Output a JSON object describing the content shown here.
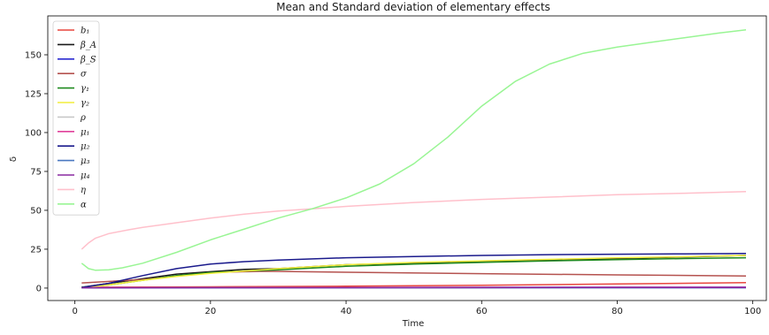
{
  "chart_data": {
    "type": "line",
    "title": "Mean and Standard deviation of elementary effects",
    "xlabel": "Time",
    "ylabel": "δ",
    "xlim": [
      -4,
      102
    ],
    "ylim": [
      -8,
      175
    ],
    "xticks": [
      0,
      20,
      40,
      60,
      80,
      100
    ],
    "yticks": [
      0,
      25,
      50,
      75,
      100,
      125,
      150
    ],
    "grid": false,
    "legend_position": "top-left",
    "series": [
      {
        "name": "b₁",
        "color": "#e8473f",
        "points": [
          [
            1,
            0.5
          ],
          [
            20,
            0.8
          ],
          [
            40,
            1.2
          ],
          [
            60,
            1.8
          ],
          [
            80,
            2.6
          ],
          [
            99,
            3.5
          ]
        ]
      },
      {
        "name": "β_A",
        "color": "#1a1a1a",
        "points": [
          [
            1,
            0.5
          ],
          [
            5,
            3
          ],
          [
            10,
            6
          ],
          [
            15,
            9
          ],
          [
            20,
            10.5
          ],
          [
            25,
            12
          ],
          [
            30,
            12.5
          ],
          [
            40,
            15
          ],
          [
            50,
            16
          ],
          [
            60,
            17
          ],
          [
            70,
            18
          ],
          [
            80,
            19
          ],
          [
            90,
            20
          ],
          [
            99,
            21
          ]
        ]
      },
      {
        "name": "β_S",
        "color": "#2a2ad0",
        "points": [
          [
            1,
            0.3
          ],
          [
            99,
            0.6
          ]
        ]
      },
      {
        "name": "σ",
        "color": "#b5524f",
        "points": [
          [
            1,
            3.3
          ],
          [
            10,
            5.5
          ],
          [
            20,
            10
          ],
          [
            28,
            10.8
          ],
          [
            40,
            10.2
          ],
          [
            60,
            9.3
          ],
          [
            80,
            8.5
          ],
          [
            99,
            7.8
          ]
        ]
      },
      {
        "name": "γ₁",
        "color": "#1f8a1f",
        "points": [
          [
            1,
            0.5
          ],
          [
            5,
            2
          ],
          [
            10,
            5
          ],
          [
            15,
            8
          ],
          [
            20,
            10
          ],
          [
            25,
            11
          ],
          [
            30,
            11.8
          ],
          [
            40,
            14
          ],
          [
            50,
            15.5
          ],
          [
            60,
            16.5
          ],
          [
            70,
            17.5
          ],
          [
            80,
            18.3
          ],
          [
            90,
            19
          ],
          [
            99,
            19.5
          ]
        ]
      },
      {
        "name": "γ₂",
        "color": "#f2ee3a",
        "points": [
          [
            1,
            0.3
          ],
          [
            5,
            2
          ],
          [
            10,
            5
          ],
          [
            15,
            7.5
          ],
          [
            20,
            9.5
          ],
          [
            25,
            11
          ],
          [
            30,
            12.5
          ],
          [
            40,
            15
          ],
          [
            50,
            16.5
          ],
          [
            60,
            17.5
          ],
          [
            70,
            18.5
          ],
          [
            80,
            19.5
          ],
          [
            90,
            20.2
          ],
          [
            99,
            21
          ]
        ]
      },
      {
        "name": "ρ",
        "color": "#c8c8c8",
        "points": [
          [
            1,
            0.2
          ],
          [
            99,
            0.3
          ]
        ]
      },
      {
        "name": "μ₁",
        "color": "#e0409a",
        "points": [
          [
            1,
            0.3
          ],
          [
            99,
            0.5
          ]
        ]
      },
      {
        "name": "μ₂",
        "color": "#1a1a8c",
        "points": [
          [
            1,
            0.4
          ],
          [
            5,
            3
          ],
          [
            10,
            8
          ],
          [
            15,
            12.5
          ],
          [
            20,
            15.5
          ],
          [
            25,
            17
          ],
          [
            30,
            18
          ],
          [
            40,
            19.5
          ],
          [
            50,
            20.3
          ],
          [
            60,
            21
          ],
          [
            70,
            21.5
          ],
          [
            80,
            21.8
          ],
          [
            90,
            22
          ],
          [
            99,
            22.3
          ]
        ]
      },
      {
        "name": "μ₃",
        "color": "#4a78c0",
        "points": [
          [
            1,
            0.1
          ],
          [
            99,
            0.2
          ]
        ]
      },
      {
        "name": "μ₄",
        "color": "#8a2aa0",
        "points": [
          [
            1,
            0.2
          ],
          [
            99,
            0.4
          ]
        ]
      },
      {
        "name": "η",
        "color": "#ffc0cb",
        "points": [
          [
            1,
            25
          ],
          [
            2,
            29
          ],
          [
            3,
            32
          ],
          [
            5,
            35
          ],
          [
            8,
            37.5
          ],
          [
            10,
            39
          ],
          [
            15,
            42
          ],
          [
            20,
            45
          ],
          [
            25,
            47.5
          ],
          [
            30,
            49.5
          ],
          [
            35,
            51
          ],
          [
            40,
            52.5
          ],
          [
            50,
            55
          ],
          [
            60,
            57
          ],
          [
            70,
            58.5
          ],
          [
            80,
            60
          ],
          [
            90,
            61
          ],
          [
            99,
            62
          ]
        ]
      },
      {
        "name": "α",
        "color": "#99f594",
        "points": [
          [
            1,
            16
          ],
          [
            2,
            12.5
          ],
          [
            3,
            11.5
          ],
          [
            5,
            11.8
          ],
          [
            7,
            13
          ],
          [
            10,
            16
          ],
          [
            15,
            23
          ],
          [
            20,
            31
          ],
          [
            25,
            38
          ],
          [
            30,
            45
          ],
          [
            35,
            51
          ],
          [
            40,
            58
          ],
          [
            45,
            67
          ],
          [
            50,
            80
          ],
          [
            55,
            97
          ],
          [
            60,
            117
          ],
          [
            65,
            133
          ],
          [
            70,
            144
          ],
          [
            75,
            151
          ],
          [
            80,
            155
          ],
          [
            85,
            158
          ],
          [
            90,
            161
          ],
          [
            95,
            164
          ],
          [
            99,
            166
          ]
        ]
      }
    ]
  }
}
